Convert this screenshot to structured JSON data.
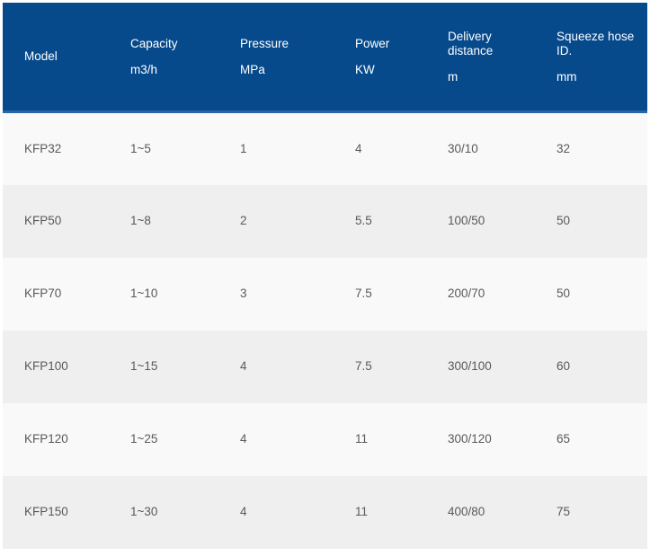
{
  "table": {
    "name": "pump-specifications",
    "columns": [
      {
        "label": "Model",
        "unit": ""
      },
      {
        "label": "Capacity",
        "unit": "m3/h"
      },
      {
        "label": "Pressure",
        "unit": "MPa"
      },
      {
        "label": "Power",
        "unit": "KW"
      },
      {
        "label": "Delivery distance",
        "unit": "m"
      },
      {
        "label": "Squeeze hose ID.",
        "unit": "mm"
      }
    ],
    "rows": [
      [
        "KFP32",
        "1~5",
        "1",
        "4",
        "30/10",
        "32"
      ],
      [
        "KFP50",
        "1~8",
        "2",
        "5.5",
        "100/50",
        "50"
      ],
      [
        "KFP70",
        "1~10",
        "3",
        "7.5",
        "200/70",
        "50"
      ],
      [
        "KFP100",
        "1~15",
        "4",
        "7.5",
        "300/100",
        "60"
      ],
      [
        "KFP120",
        "1~25",
        "4",
        "11",
        "300/120",
        "65"
      ],
      [
        "KFP150",
        "1~30",
        "4",
        "11",
        "400/80",
        "75"
      ]
    ]
  },
  "colors": {
    "header_bg": "#064a8c",
    "header_divider": "#2766ab",
    "header_text": "#ffffff",
    "row_odd_bg": "#f9f9f9",
    "row_even_bg": "#efefef",
    "body_text": "#595959"
  }
}
